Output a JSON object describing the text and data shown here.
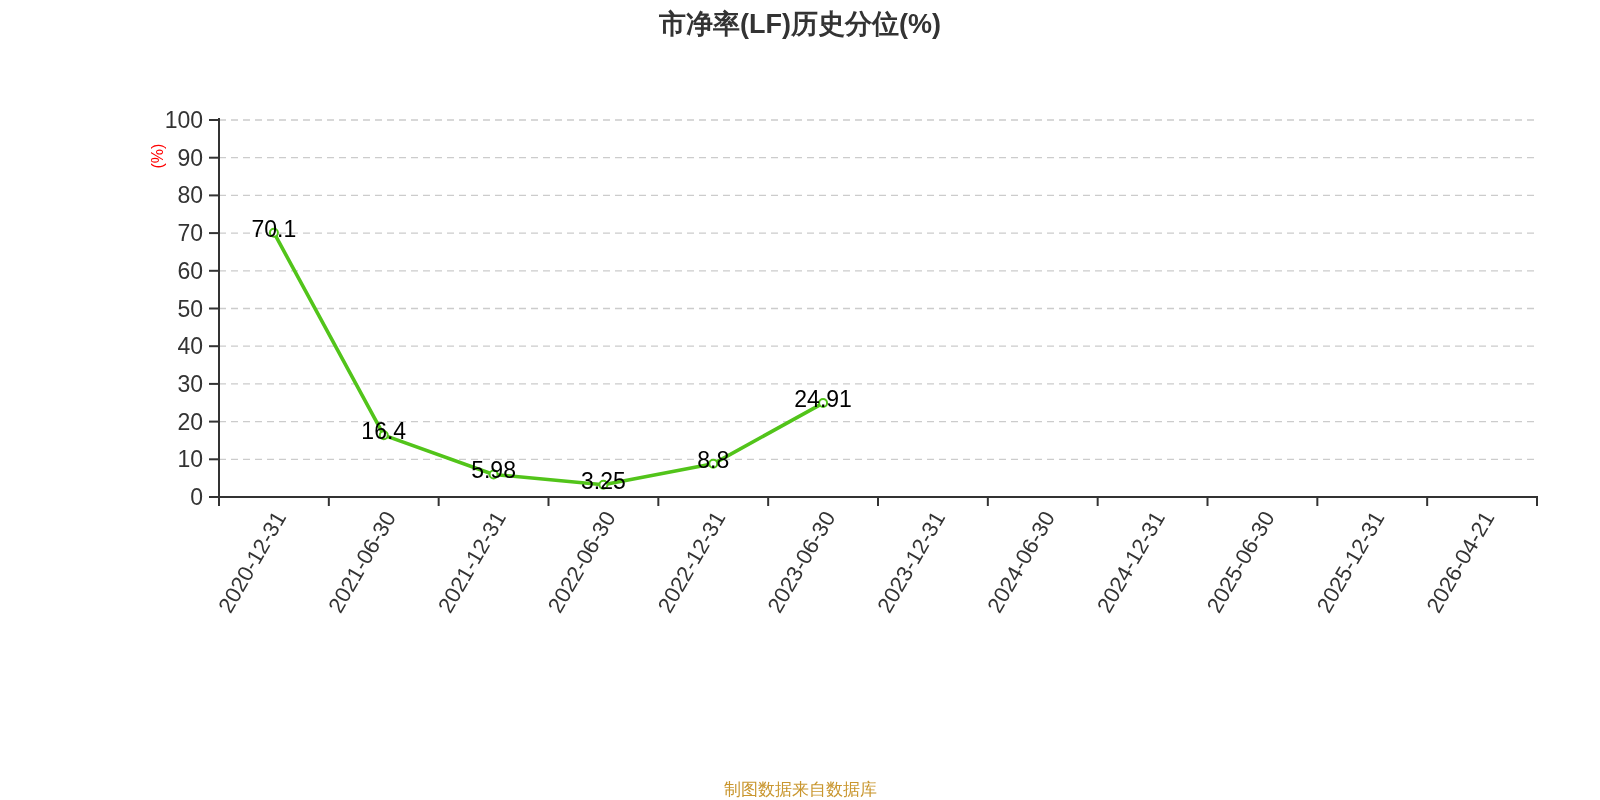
{
  "chart_data": {
    "type": "line",
    "title": "市净率(LF)历史分位(%)",
    "ylabel": "(%)",
    "categories": [
      "2020-12-31",
      "2021-06-30",
      "2021-12-31",
      "2022-06-30",
      "2022-12-31",
      "2023-06-30",
      "2023-12-31",
      "2024-06-30",
      "2024-12-31",
      "2025-06-30",
      "2025-12-31",
      "2026-04-21"
    ],
    "series": [
      {
        "color": "#52c41a",
        "values": [
          70.1,
          16.4,
          5.98,
          3.25,
          8.8,
          24.91,
          null,
          null,
          null,
          null,
          null,
          null
        ]
      }
    ],
    "ylim": [
      0,
      100
    ],
    "yticks": [
      0,
      10,
      20,
      30,
      40,
      50,
      60,
      70,
      80,
      90,
      100
    ],
    "grid": "y",
    "marker": "circle",
    "data_labels": true,
    "annotations": [
      "制图数据来自数据库"
    ]
  }
}
